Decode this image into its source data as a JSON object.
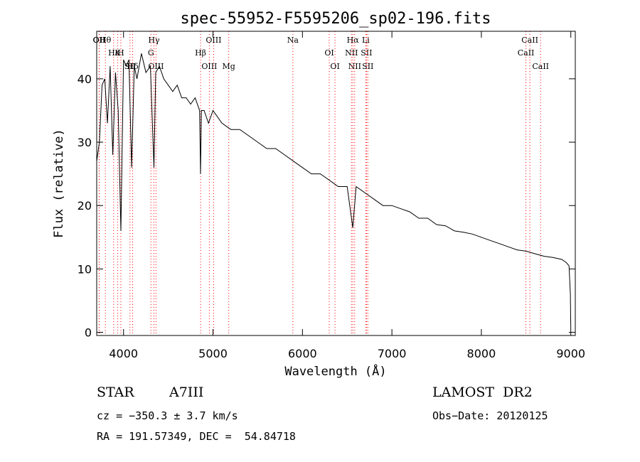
{
  "chart_data": {
    "type": "line",
    "title": "spec-55952-F5595206_sp02-196.fits",
    "xlabel": "Wavelength (Å)",
    "ylabel": "Flux (relative)",
    "xlim": [
      3700,
      9050
    ],
    "ylim": [
      -0.5,
      47.5
    ],
    "xticks": [
      4000,
      5000,
      6000,
      7000,
      8000,
      9000
    ],
    "yticks": [
      0,
      10,
      20,
      30,
      40
    ],
    "grid": false,
    "series": [
      {
        "x": [
          3700,
          3730,
          3760,
          3790,
          3820,
          3850,
          3880,
          3910,
          3940,
          3970,
          4000,
          4030,
          4060,
          4090,
          4120,
          4150,
          4200,
          4250,
          4300,
          4340,
          4360,
          4400,
          4450,
          4500,
          4550,
          4600,
          4650,
          4700,
          4750,
          4800,
          4850,
          4861,
          4870,
          4900,
          4950,
          5000,
          5100,
          5200,
          5300,
          5400,
          5500,
          5600,
          5700,
          5800,
          5900,
          6000,
          6100,
          6200,
          6300,
          6400,
          6500,
          6563,
          6600,
          6700,
          6800,
          6900,
          7000,
          7100,
          7200,
          7300,
          7400,
          7500,
          7600,
          7700,
          7800,
          7900,
          8000,
          8100,
          8200,
          8300,
          8400,
          8500,
          8600,
          8700,
          8800,
          8900,
          8950,
          8980,
          8995,
          9000
        ],
        "y": [
          27,
          30,
          39,
          40,
          33,
          42,
          28,
          41,
          35,
          16,
          43,
          42,
          43,
          26,
          42,
          40,
          44,
          41,
          42,
          26,
          41,
          42,
          40,
          39,
          38,
          39,
          37,
          37,
          36,
          37,
          35,
          25,
          35,
          35,
          33,
          35,
          33,
          32,
          32,
          31,
          30,
          29,
          29,
          28,
          27,
          26,
          25,
          25,
          24,
          23,
          23,
          16.5,
          23,
          22,
          21,
          20,
          20,
          19.5,
          19,
          18,
          18,
          17,
          16.8,
          16,
          15.8,
          15.5,
          15,
          14.5,
          14,
          13.5,
          13,
          12.8,
          12.4,
          12,
          11.8,
          11.5,
          11,
          10.5,
          6,
          0.5
        ]
      }
    ],
    "line_markers": [
      {
        "name": "Hθ",
        "x": 3797
      },
      {
        "name": "K",
        "x": 3934
      },
      {
        "name": "Hδ",
        "x": 4102
      },
      {
        "name": "OII",
        "x": 3727
      },
      {
        "name": "Hε",
        "x": 3889
      },
      {
        "name": "SII",
        "x": 4072
      },
      {
        "name": "OII",
        "x": 3729
      },
      {
        "name": "H",
        "x": 3970
      },
      {
        "name": "OIII",
        "x": 4363
      },
      {
        "name": "Hγ",
        "x": 4340
      },
      {
        "name": "G",
        "x": 4306
      },
      {
        "name": "OIII",
        "x": 4959
      },
      {
        "name": "OIII",
        "x": 5007
      },
      {
        "name": "Hβ",
        "x": 4861
      },
      {
        "name": "Mg",
        "x": 5176
      },
      {
        "name": "Na",
        "x": 5893
      },
      {
        "name": "OI",
        "x": 6300
      },
      {
        "name": "OI",
        "x": 6364
      },
      {
        "name": "Hα",
        "x": 6563
      },
      {
        "name": "SII",
        "x": 6716
      },
      {
        "name": "NII",
        "x": 6584
      },
      {
        "name": "Li",
        "x": 6708
      },
      {
        "name": "NII",
        "x": 6548
      },
      {
        "name": "SII",
        "x": 6731
      },
      {
        "name": "CaII",
        "x": 8542
      },
      {
        "name": "CaII",
        "x": 8498
      },
      {
        "name": "CaII",
        "x": 8662
      }
    ],
    "marker_color": "#ff0000"
  },
  "info": {
    "object_type": "STAR",
    "subclass": "A7III",
    "survey": "LAMOST  DR2",
    "cz": "cz = −350.3 ± 3.7 km/s",
    "obs_date": "Obs−Date: 20120125",
    "coords": "RA = 191.57349, DEC =  54.84718"
  }
}
